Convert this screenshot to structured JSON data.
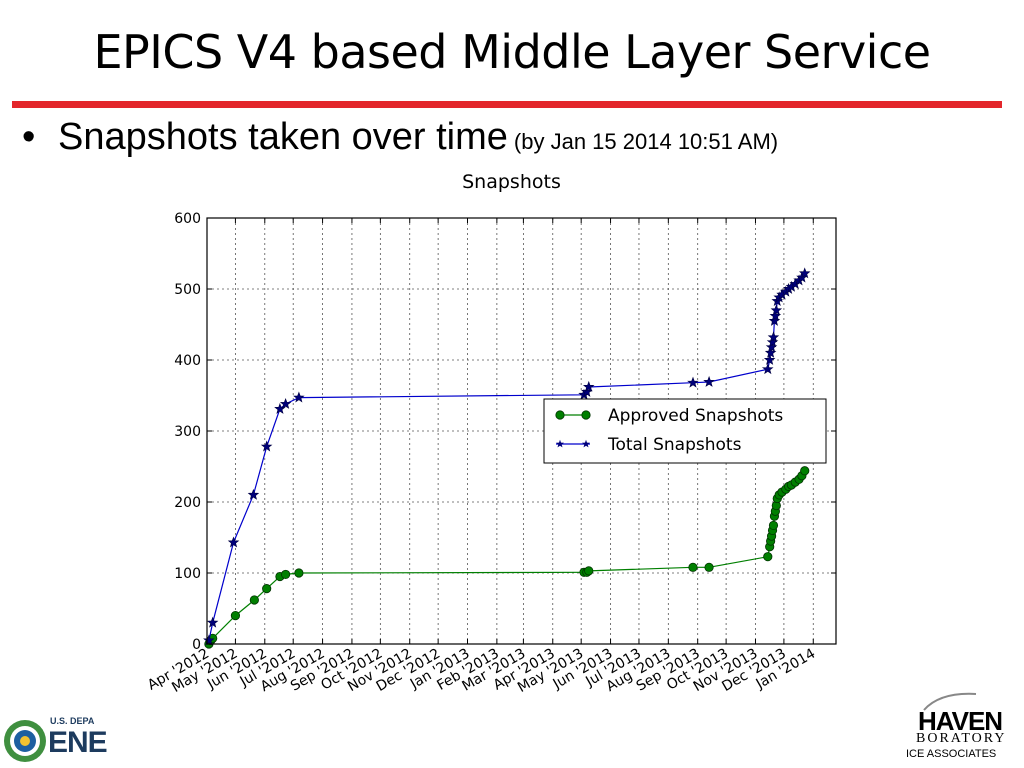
{
  "slide": {
    "title": "EPICS V4 based Middle Layer Service",
    "bullet_symbol": "•",
    "bullet_text": "Snapshots taken over time",
    "bullet_subtext": "(by Jan 15 2014 10:51 AM)",
    "accent_color": "#e3262b"
  },
  "logos": {
    "left_top_text": "U.S. DEPA",
    "left_big_text": "ENE",
    "right_big_text": "HAVEN",
    "right_lab_text": "BORATORY",
    "right_assoc_text": "ICE ASSOCIATES"
  },
  "chart_data": {
    "type": "line",
    "title": "Snapshots",
    "xlabel": "",
    "ylabel": "",
    "x_axis": "date",
    "xlim": [
      "2012-04-01",
      "2014-01-25"
    ],
    "ylim": [
      0,
      600
    ],
    "yticks": [
      0,
      100,
      200,
      300,
      400,
      500,
      600
    ],
    "x_tick_dates": [
      "2012-04-01",
      "2012-05-01",
      "2012-06-01",
      "2012-07-01",
      "2012-08-01",
      "2012-09-01",
      "2012-10-01",
      "2012-11-01",
      "2012-12-01",
      "2013-01-01",
      "2013-02-01",
      "2013-03-01",
      "2013-04-01",
      "2013-05-01",
      "2013-06-01",
      "2013-07-01",
      "2013-08-01",
      "2013-09-01",
      "2013-10-01",
      "2013-11-01",
      "2013-12-01",
      "2014-01-01"
    ],
    "x_tick_labels": [
      "Apr '2012",
      "May '2012",
      "Jun '2012",
      "Jul '2012",
      "Aug '2012",
      "Sep '2012",
      "Oct '2012",
      "Nov '2012",
      "Dec '2012",
      "Jan '2013",
      "Feb '2013",
      "Mar '2013",
      "Apr '2013",
      "May '2013",
      "Jun '2013",
      "Jul '2013",
      "Aug '2013",
      "Sep '2013",
      "Oct '2013",
      "Nov '2013",
      "Dec '2013",
      "Jan '2014"
    ],
    "grid": true,
    "legend_position": "center-right",
    "series": [
      {
        "name": "Approved Snapshots",
        "color": "#007f00",
        "marker": "circle",
        "points": [
          [
            "2012-04-03",
            0
          ],
          [
            "2012-04-05",
            5
          ],
          [
            "2012-04-07",
            8
          ],
          [
            "2012-05-01",
            40
          ],
          [
            "2012-05-21",
            62
          ],
          [
            "2012-06-03",
            78
          ],
          [
            "2012-06-17",
            95
          ],
          [
            "2012-06-23",
            98
          ],
          [
            "2012-07-07",
            100
          ],
          [
            "2013-05-04",
            101
          ],
          [
            "2013-05-07",
            101
          ],
          [
            "2013-05-09",
            103
          ],
          [
            "2013-08-27",
            108
          ],
          [
            "2013-09-13",
            108
          ],
          [
            "2013-11-14",
            123
          ],
          [
            "2013-11-16",
            137
          ],
          [
            "2013-11-17",
            145
          ],
          [
            "2013-11-18",
            152
          ],
          [
            "2013-11-19",
            160
          ],
          [
            "2013-11-20",
            167
          ],
          [
            "2013-11-21",
            180
          ],
          [
            "2013-11-22",
            187
          ],
          [
            "2013-11-23",
            195
          ],
          [
            "2013-11-24",
            205
          ],
          [
            "2013-11-26",
            210
          ],
          [
            "2013-11-29",
            214
          ],
          [
            "2013-12-03",
            218
          ],
          [
            "2013-12-06",
            222
          ],
          [
            "2013-12-09",
            224
          ],
          [
            "2013-12-13",
            228
          ],
          [
            "2013-12-17",
            232
          ],
          [
            "2013-12-20",
            237
          ],
          [
            "2013-12-23",
            244
          ]
        ]
      },
      {
        "name": "Total Snapshots",
        "color": "#0000cc",
        "marker": "star",
        "points": [
          [
            "2012-04-03",
            5
          ],
          [
            "2012-04-07",
            30
          ],
          [
            "2012-04-29",
            143
          ],
          [
            "2012-05-20",
            210
          ],
          [
            "2012-06-03",
            278
          ],
          [
            "2012-06-17",
            331
          ],
          [
            "2012-06-23",
            338
          ],
          [
            "2012-07-07",
            347
          ],
          [
            "2013-05-04",
            351
          ],
          [
            "2013-05-07",
            355
          ],
          [
            "2013-05-09",
            362
          ],
          [
            "2013-08-27",
            368
          ],
          [
            "2013-09-13",
            369
          ],
          [
            "2013-11-14",
            387
          ],
          [
            "2013-11-16",
            400
          ],
          [
            "2013-11-17",
            410
          ],
          [
            "2013-11-18",
            418
          ],
          [
            "2013-11-19",
            425
          ],
          [
            "2013-11-20",
            432
          ],
          [
            "2013-11-21",
            455
          ],
          [
            "2013-11-22",
            462
          ],
          [
            "2013-11-23",
            470
          ],
          [
            "2013-11-24",
            483
          ],
          [
            "2013-11-26",
            488
          ],
          [
            "2013-11-29",
            492
          ],
          [
            "2013-12-03",
            496
          ],
          [
            "2013-12-06",
            500
          ],
          [
            "2013-12-09",
            503
          ],
          [
            "2013-12-13",
            507
          ],
          [
            "2013-12-17",
            512
          ],
          [
            "2013-12-20",
            516
          ],
          [
            "2013-12-23",
            522
          ]
        ]
      }
    ]
  }
}
